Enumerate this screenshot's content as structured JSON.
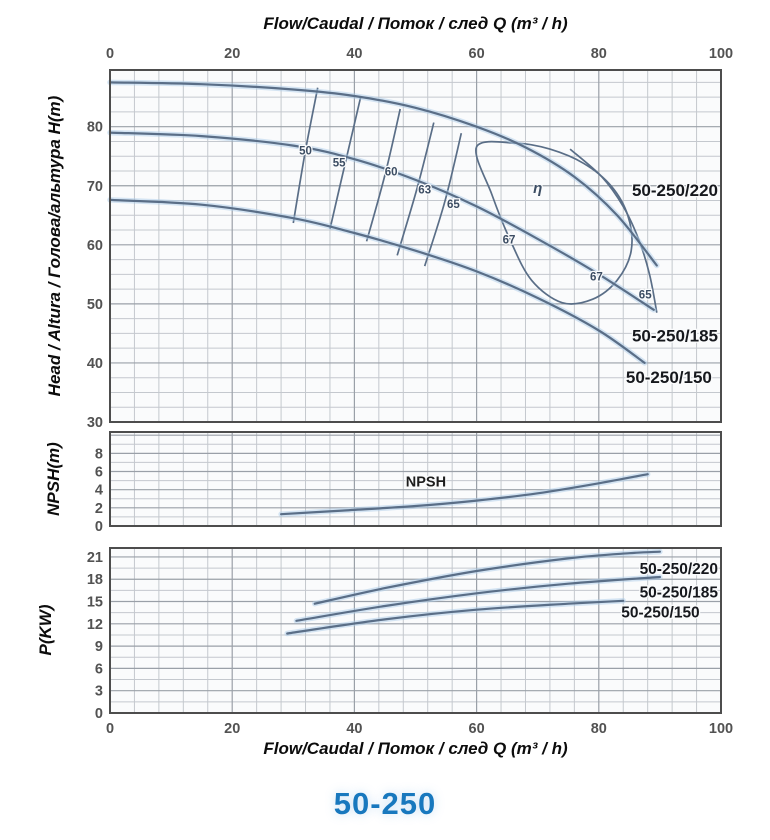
{
  "page": {
    "brand": "50-250"
  },
  "axes": {
    "flow_title_top": "Flow/Caudal / Поток / след  Q (m³ / h)",
    "flow_title_bottom": "Flow/Caudal / Поток / след  Q (m³ / h)",
    "head_axis": "Head / Altura / Голова/альтура H(m)",
    "npsh_axis": "NPSH(m)",
    "power_axis": "P(KW)"
  },
  "colors": {
    "curve": "#5a6e87",
    "curve_halo": "rgba(173,205,233,0.5)",
    "grid_minor": "#c4c8ce",
    "grid_major": "#9aa0a8",
    "border": "#4d4d4d",
    "plot_bg": "#fafbfc",
    "tick": "#525252",
    "brand": "#1878be"
  },
  "chart_data": [
    {
      "id": "head",
      "type": "line",
      "xlabel": "Q (m³ / h)",
      "ylabel": "H(m)",
      "xlim": [
        0,
        100
      ],
      "ylim": [
        30,
        89.6
      ],
      "xticks": [
        0,
        20,
        40,
        60,
        80,
        100
      ],
      "yticks": [
        30,
        40,
        50,
        60,
        70,
        80
      ],
      "x_tick_side": "top",
      "grid": {
        "x_minor": 4,
        "x_major": 20,
        "y_minor": 2.5,
        "y_major": 10
      },
      "series": [
        {
          "name": "50-250/220",
          "points": [
            [
              0,
              87.5
            ],
            [
              15,
              87.2
            ],
            [
              30,
              86.3
            ],
            [
              40,
              85.2
            ],
            [
              50,
              83.2
            ],
            [
              60,
              80
            ],
            [
              68,
              76.5
            ],
            [
              76,
              71.5
            ],
            [
              83,
              65
            ],
            [
              89.5,
              56.5
            ]
          ]
        },
        {
          "name": "50-250/185",
          "points": [
            [
              0,
              79
            ],
            [
              15,
              78.4
            ],
            [
              30,
              76.8
            ],
            [
              40,
              74.5
            ],
            [
              50,
              71
            ],
            [
              60,
              66.5
            ],
            [
              70,
              61
            ],
            [
              80,
              55
            ],
            [
              89,
              49
            ]
          ]
        },
        {
          "name": "50-250/150",
          "points": [
            [
              0,
              67.6
            ],
            [
              15,
              66.8
            ],
            [
              30,
              64.5
            ],
            [
              40,
              62
            ],
            [
              50,
              59
            ],
            [
              60,
              55.5
            ],
            [
              70,
              51
            ],
            [
              80,
              45.5
            ],
            [
              87.5,
              40
            ]
          ]
        }
      ],
      "efficiency_lines": [
        {
          "label": "50",
          "points": [
            [
              34,
              86.6
            ],
            [
              32,
              76
            ],
            [
              30,
              63.7
            ]
          ]
        },
        {
          "label": "55",
          "points": [
            [
              41,
              84.9
            ],
            [
              38.5,
              73.8
            ],
            [
              36,
              62.7
            ]
          ]
        },
        {
          "label": "60",
          "points": [
            [
              47.5,
              83
            ],
            [
              45,
              71.8
            ],
            [
              42,
              60.6
            ]
          ]
        },
        {
          "label": "63",
          "points": [
            [
              53,
              80.7
            ],
            [
              50.3,
              69.7
            ],
            [
              47,
              58.2
            ]
          ]
        },
        {
          "label": "65",
          "points": [
            [
              57.5,
              78.9
            ],
            [
              54.8,
              67.3
            ],
            [
              51.5,
              56.4
            ]
          ]
        },
        {
          "label": "65",
          "points": [
            [
              75.3,
              76.2
            ],
            [
              80.5,
              71.5
            ],
            [
              84,
              66.5
            ],
            [
              86.5,
              61
            ],
            [
              88.3,
              55
            ],
            [
              89.5,
              48.5
            ]
          ]
        }
      ],
      "efficiency_loop": {
        "label": "67",
        "closed": true,
        "points": [
          [
            60,
            76.6
          ],
          [
            66.5,
            77.2
          ],
          [
            72,
            76.2
          ],
          [
            77.5,
            73.8
          ],
          [
            82,
            70
          ],
          [
            84.8,
            64.8
          ],
          [
            85.3,
            59
          ],
          [
            83,
            54
          ],
          [
            79,
            50.8
          ],
          [
            74,
            50.2
          ],
          [
            69,
            54
          ],
          [
            65.5,
            60.8
          ],
          [
            62.5,
            68.5
          ]
        ]
      },
      "annotations": [
        {
          "text": "50",
          "x": 32,
          "y": 76,
          "cls": "eff"
        },
        {
          "text": "55",
          "x": 37.5,
          "y": 73.9,
          "cls": "eff"
        },
        {
          "text": "60",
          "x": 46,
          "y": 72.4,
          "cls": "eff"
        },
        {
          "text": "63",
          "x": 51.5,
          "y": 69.4,
          "cls": "eff"
        },
        {
          "text": "65",
          "x": 56.2,
          "y": 66.9,
          "cls": "eff"
        },
        {
          "text": "η",
          "x": 70,
          "y": 69.7,
          "cls": "eta"
        },
        {
          "text": "67",
          "x": 65.3,
          "y": 60.9,
          "cls": "eff"
        },
        {
          "text": "67",
          "x": 79.6,
          "y": 54.6,
          "cls": "eff"
        },
        {
          "text": "65",
          "x": 87.6,
          "y": 51.6,
          "cls": "eff"
        }
      ],
      "curve_labels": [
        {
          "text": "50-250/220",
          "x": 100,
          "y": 69.3,
          "anchor": "end",
          "cls": "name"
        },
        {
          "text": "50-250/185",
          "x": 100,
          "y": 44.6,
          "anchor": "end",
          "cls": "name"
        },
        {
          "text": "50-250/150",
          "x": 99,
          "y": 37.6,
          "anchor": "end",
          "cls": "name"
        }
      ]
    },
    {
      "id": "npsh",
      "type": "line",
      "xlabel": "Q (m³ / h)",
      "ylabel": "NPSH(m)",
      "xlim": [
        0,
        100
      ],
      "ylim": [
        0,
        10.35
      ],
      "xticks": [
        0,
        20,
        40,
        60,
        80,
        100
      ],
      "yticks": [
        0,
        2,
        4,
        6,
        8
      ],
      "x_tick_side": "none",
      "grid": {
        "x_minor": 4,
        "x_major": 20,
        "y_minor": 1,
        "y_major": 2
      },
      "series": [
        {
          "name": "NPSH",
          "points": [
            [
              28,
              1.3
            ],
            [
              38,
              1.7
            ],
            [
              50,
              2.2
            ],
            [
              60,
              2.8
            ],
            [
              70,
              3.6
            ],
            [
              80,
              4.7
            ],
            [
              88,
              5.7
            ]
          ]
        }
      ],
      "annotations": [
        {
          "text": "NPSH",
          "x": 51.7,
          "y": 4.9,
          "cls": "npsh"
        }
      ],
      "curve_labels": []
    },
    {
      "id": "power",
      "type": "line",
      "xlabel": "Q (m³ / h)",
      "ylabel": "P(KW)",
      "xlim": [
        0,
        100
      ],
      "ylim": [
        0,
        22.2
      ],
      "xticks": [
        0,
        20,
        40,
        60,
        80,
        100
      ],
      "yticks": [
        0,
        3,
        6,
        9,
        12,
        15,
        18,
        21
      ],
      "x_tick_side": "bottom",
      "grid": {
        "x_minor": 4,
        "x_major": 20,
        "y_minor": 1.5,
        "y_major": 3
      },
      "series": [
        {
          "name": "50-250/220",
          "points": [
            [
              33.5,
              14.7
            ],
            [
              45,
              16.8
            ],
            [
              60,
              19.1
            ],
            [
              75,
              20.8
            ],
            [
              85,
              21.5
            ],
            [
              90,
              21.7
            ]
          ]
        },
        {
          "name": "50-250/185",
          "points": [
            [
              30.5,
              12.4
            ],
            [
              45,
              14.4
            ],
            [
              60,
              16.1
            ],
            [
              75,
              17.4
            ],
            [
              90,
              18.3
            ]
          ]
        },
        {
          "name": "50-250/150",
          "points": [
            [
              29,
              10.7
            ],
            [
              45,
              12.6
            ],
            [
              60,
              13.9
            ],
            [
              75,
              14.7
            ],
            [
              84,
              15.1
            ]
          ]
        }
      ],
      "annotations": [],
      "curve_labels": [
        {
          "text": "50-250/220",
          "x": 100,
          "y": 19.4,
          "anchor": "end",
          "cls": "name-sm"
        },
        {
          "text": "50-250/185",
          "x": 100,
          "y": 16.3,
          "anchor": "end",
          "cls": "name-sm"
        },
        {
          "text": "50-250/150",
          "x": 97,
          "y": 13.6,
          "anchor": "end",
          "cls": "name-sm"
        }
      ]
    }
  ]
}
